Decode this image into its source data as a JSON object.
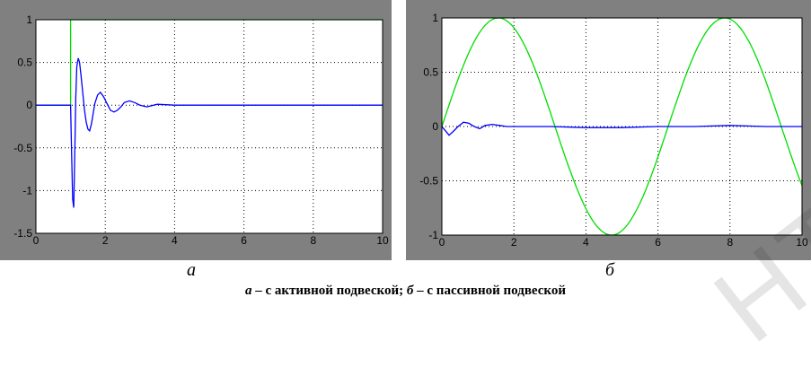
{
  "colors": {
    "frame": "#808080",
    "plot_bg": "#ffffff",
    "grid": "#000000",
    "input": "#00dd00",
    "response": "#0000ff"
  },
  "watermark": "НТУ",
  "caption": {
    "label_a": "a",
    "text_a": " – с активной подвеской; ",
    "label_b": "б",
    "text_b": " – с пассивной подвеской"
  },
  "chart_data": [
    {
      "type": "line",
      "panel_label": "а",
      "xlim": [
        0,
        10
      ],
      "ylim": [
        -1.5,
        1
      ],
      "xticks": [
        0,
        2,
        4,
        6,
        8,
        10
      ],
      "yticks": [
        -1.5,
        -1,
        -0.5,
        0,
        0.5,
        1
      ],
      "grid": true,
      "series": [
        {
          "color": "#00dd00",
          "x": [
            0,
            1,
            1,
            10
          ],
          "y": [
            0,
            0,
            1,
            1
          ]
        },
        {
          "color": "#0000ff",
          "x": [
            0,
            1,
            1.03,
            1.06,
            1.09,
            1.12,
            1.15,
            1.18,
            1.22,
            1.26,
            1.3,
            1.35,
            1.4,
            1.45,
            1.5,
            1.55,
            1.6,
            1.65,
            1.7,
            1.78,
            1.86,
            1.95,
            2.05,
            2.15,
            2.25,
            2.35,
            2.45,
            2.55,
            2.7,
            2.85,
            3,
            3.2,
            3.5,
            4,
            10
          ],
          "y": [
            0,
            0,
            -0.6,
            -1.1,
            -1.2,
            -0.6,
            0.1,
            0.45,
            0.55,
            0.5,
            0.35,
            0.15,
            -0.05,
            -0.2,
            -0.28,
            -0.3,
            -0.22,
            -0.1,
            0.02,
            0.12,
            0.15,
            0.1,
            0.02,
            -0.06,
            -0.08,
            -0.06,
            -0.02,
            0.03,
            0.05,
            0.03,
            0.0,
            -0.02,
            0.01,
            0.0,
            0.0
          ]
        }
      ]
    },
    {
      "type": "line",
      "panel_label": "б",
      "xlim": [
        0,
        10
      ],
      "ylim": [
        -1,
        1
      ],
      "xticks": [
        0,
        2,
        4,
        6,
        8,
        10
      ],
      "yticks": [
        -1,
        -0.5,
        0,
        0.5,
        1
      ],
      "grid": true,
      "series": [
        {
          "color": "#00dd00",
          "function": "sin(x)",
          "x_range": [
            0,
            10
          ]
        },
        {
          "color": "#0000ff",
          "x": [
            0,
            0.1,
            0.2,
            0.3,
            0.45,
            0.6,
            0.75,
            0.9,
            1.05,
            1.2,
            1.4,
            1.6,
            1.8,
            2.2,
            3,
            4,
            5,
            6,
            7,
            8,
            9,
            10
          ],
          "y": [
            0,
            -0.04,
            -0.08,
            -0.05,
            0.0,
            0.04,
            0.03,
            0.0,
            -0.02,
            0.01,
            0.02,
            0.01,
            0.0,
            0.0,
            0.0,
            -0.01,
            -0.01,
            0.0,
            0.0,
            0.01,
            0.0,
            0.0
          ]
        }
      ]
    }
  ]
}
